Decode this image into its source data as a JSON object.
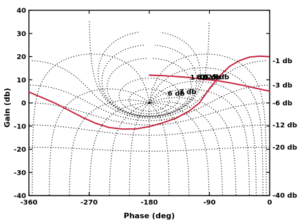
{
  "chart_data": {
    "type": "line",
    "title": "",
    "xlabel": "Phase (deg)",
    "ylabel": "Gain (db)",
    "xlim": [
      -360,
      0
    ],
    "ylim": [
      -40,
      40
    ],
    "x_ticks": [
      -360,
      -270,
      -180,
      -90,
      0
    ],
    "x_tick_labels": [
      "-360",
      "-270",
      "-180",
      "-90",
      "0"
    ],
    "y_ticks": [
      -40,
      -30,
      -20,
      -10,
      0,
      10,
      20,
      30,
      40
    ],
    "y_tick_labels": [
      "-40",
      "-30",
      "-20",
      "-10",
      "0",
      "10",
      "20",
      "30",
      "40"
    ],
    "grid": "Nichols chart grid (constant closed-loop magnitude and phase contours)",
    "series_color": "#c41e3a",
    "grid_color": "#000000",
    "series": [
      {
        "points": [
          [
            -360,
            4.7
          ],
          [
            -340,
            2.3
          ],
          [
            -320,
            -0.2
          ],
          [
            -300,
            -3.2
          ],
          [
            -280,
            -6.2
          ],
          [
            -260,
            -8.8
          ],
          [
            -240,
            -10.6
          ],
          [
            -220,
            -11.3
          ],
          [
            -200,
            -11.2
          ],
          [
            -180,
            -10.2
          ],
          [
            -160,
            -8.6
          ],
          [
            -140,
            -6.6
          ],
          [
            -120,
            -3.4
          ],
          [
            -105,
            0
          ],
          [
            -90,
            6.2
          ],
          [
            -75,
            11.6
          ],
          [
            -60,
            15.8
          ],
          [
            -45,
            18.3
          ],
          [
            -30,
            19.8
          ],
          [
            -15,
            20.2
          ],
          [
            -2,
            20
          ]
        ]
      },
      {
        "points": [
          [
            -180,
            12
          ],
          [
            -160,
            11.8
          ],
          [
            -140,
            11.4
          ],
          [
            -120,
            11
          ],
          [
            -100,
            10.2
          ],
          [
            -80,
            9.7
          ],
          [
            -60,
            8.7
          ],
          [
            -40,
            7.6
          ],
          [
            -20,
            6.3
          ],
          [
            0,
            5.1
          ]
        ]
      }
    ],
    "contour_labels": {
      "magnitude_inside": [
        "0 db",
        "0.25 db",
        "0.5 db",
        "1 db",
        "6 db",
        "3 db"
      ],
      "magnitude_right": [
        "-1 db",
        "-3 db",
        "-6 db",
        "-12 db",
        "-20 db",
        "-40 db"
      ]
    }
  }
}
